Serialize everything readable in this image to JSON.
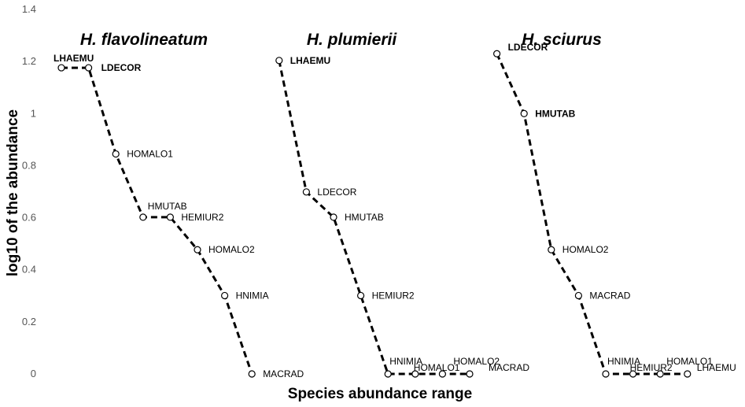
{
  "chart_data": {
    "type": "line",
    "xlabel": "Species abundance range",
    "ylabel": "log10 of the abundance",
    "ylim": [
      0,
      1.4
    ],
    "yticks": [
      "0",
      "0.2",
      "0.4",
      "0.6",
      "0.8",
      "1",
      "1.2",
      "1.4"
    ],
    "grid": false,
    "series": [
      {
        "name": "H. flavolineatum",
        "x": [
          1,
          2,
          3,
          4,
          5,
          6,
          7,
          8
        ],
        "labels": [
          "LHAEMU",
          "LDECOR",
          "HOMALO1",
          "HMUTAB",
          "HEMIUR2",
          "HOMALO2",
          "HNIMIA",
          "MACRAD"
        ],
        "values": [
          1.176,
          1.176,
          0.845,
          0.602,
          0.602,
          0.477,
          0.301,
          0
        ]
      },
      {
        "name": "H. plumierii",
        "x": [
          9,
          10,
          11,
          12,
          13,
          14,
          15,
          16
        ],
        "labels": [
          "LHAEMU",
          "LDECOR",
          "HMUTAB",
          "HEMIUR2",
          "HNIMIA",
          "HOMALO1",
          "HOMALO2",
          "MACRAD"
        ],
        "values": [
          1.204,
          0.699,
          0.602,
          0.301,
          0,
          0,
          0,
          0
        ]
      },
      {
        "name": "H. sciurus",
        "x": [
          17,
          18,
          19,
          20,
          21,
          22,
          23,
          24
        ],
        "labels": [
          "LDECOR",
          "HMUTAB",
          "HOMALO2",
          "MACRAD",
          "HNIMIA",
          "HEMIUR2",
          "HOMALO1",
          "LHAEMU"
        ],
        "values": [
          1.23,
          1.0,
          0.477,
          0.301,
          0,
          0,
          0,
          0
        ]
      }
    ]
  }
}
